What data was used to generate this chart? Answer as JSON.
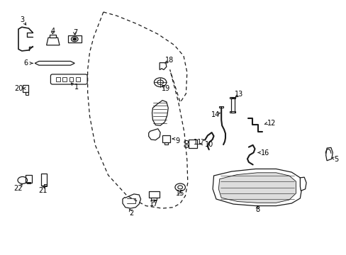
{
  "background_color": "#ffffff",
  "line_color": "#1a1a1a",
  "figsize": [
    4.89,
    3.6
  ],
  "dpi": 100,
  "door_outline": {
    "x": [
      0.295,
      0.285,
      0.27,
      0.258,
      0.252,
      0.252,
      0.258,
      0.278,
      0.33,
      0.4,
      0.47,
      0.518,
      0.538,
      0.542,
      0.538,
      0.52,
      0.49,
      0.455
    ],
    "y": [
      0.96,
      0.92,
      0.86,
      0.79,
      0.71,
      0.62,
      0.52,
      0.4,
      0.27,
      0.195,
      0.168,
      0.18,
      0.215,
      0.29,
      0.42,
      0.57,
      0.72,
      0.85
    ]
  },
  "window_outline": {
    "x": [
      0.295,
      0.33,
      0.39,
      0.455,
      0.5,
      0.528,
      0.538,
      0.535,
      0.518,
      0.49,
      0.455
    ],
    "y": [
      0.96,
      0.94,
      0.91,
      0.87,
      0.83,
      0.79,
      0.73,
      0.64,
      0.57,
      0.68,
      0.85
    ]
  }
}
